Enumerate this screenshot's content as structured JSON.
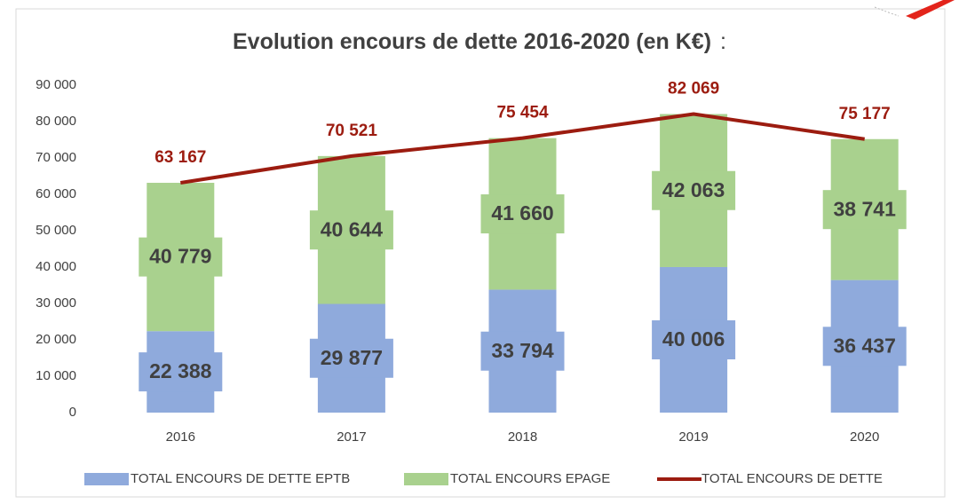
{
  "chart_data": {
    "type": "stacked-bar-line",
    "title": "Evolution encours de dette 2016-2020 (en K€)",
    "title_suffix": ":",
    "categories": [
      "2016",
      "2017",
      "2018",
      "2019",
      "2020"
    ],
    "series": [
      {
        "name": "TOTAL ENCOURS DE DETTE EPTB",
        "type": "bar",
        "color": "#8faadc",
        "values": [
          22388,
          29877,
          33794,
          40006,
          36437
        ],
        "value_labels": [
          "22 388",
          "29 877",
          "33 794",
          "40 006",
          "36 437"
        ]
      },
      {
        "name": "TOTAL ENCOURS EPAGE",
        "type": "bar",
        "color": "#a9d18e",
        "values": [
          40779,
          40644,
          41660,
          42063,
          38741
        ],
        "value_labels": [
          "40 779",
          "40 644",
          "41 660",
          "42 063",
          "38 741"
        ]
      },
      {
        "name": "TOTAL ENCOURS DE DETTE",
        "type": "line",
        "color": "#9c1c10",
        "values": [
          63167,
          70521,
          75454,
          82069,
          75177
        ],
        "value_labels": [
          "63 167",
          "70 521",
          "75 454",
          "82 069",
          "75 177"
        ]
      }
    ],
    "ylim": [
      0,
      90000
    ],
    "yticks": [
      0,
      {
        "value": 10000,
        "label": "10 000"
      },
      {
        "value": 20000,
        "label": "20 000"
      },
      {
        "value": 30000,
        "label": "30 000"
      },
      {
        "value": 40000,
        "label": "40 000"
      },
      {
        "value": 50000,
        "label": "50 000"
      },
      {
        "value": 60000,
        "label": "60 000"
      },
      {
        "value": 70000,
        "label": "70 000"
      },
      {
        "value": 80000,
        "label": "80 000"
      },
      {
        "value": 90000,
        "label": "90 000"
      }
    ],
    "grid": false,
    "legend": "bottom"
  }
}
